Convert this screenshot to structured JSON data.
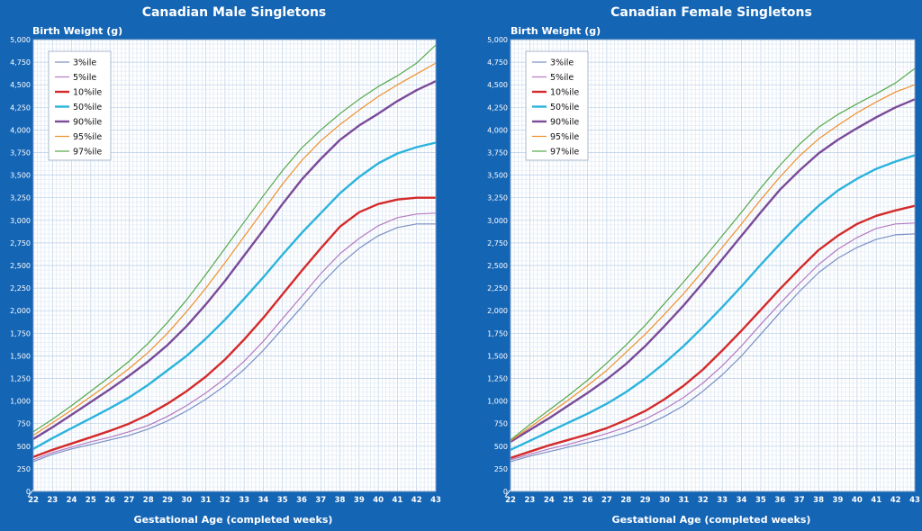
{
  "chart_data": [
    {
      "type": "line",
      "title": "Canadian Male Singletons",
      "ylabel": "Birth Weight (g)",
      "xlabel": "Gestational Age (completed weeks)",
      "x": [
        22,
        23,
        24,
        25,
        26,
        27,
        28,
        29,
        30,
        31,
        32,
        33,
        34,
        35,
        36,
        37,
        38,
        39,
        40,
        41,
        42,
        43
      ],
      "xlim": [
        22,
        43
      ],
      "ylim": [
        0,
        5000
      ],
      "ytick_step": 250,
      "grid": true,
      "legend_position": "top-left",
      "series": [
        {
          "name": "3%ile",
          "color": "#7b8fc4",
          "width": 1.2,
          "values": [
            330,
            410,
            470,
            520,
            570,
            620,
            690,
            780,
            890,
            1020,
            1170,
            1350,
            1560,
            1800,
            2040,
            2290,
            2510,
            2690,
            2830,
            2920,
            2960,
            2960
          ]
        },
        {
          "name": "5%ile",
          "color": "#b57ac0",
          "width": 1.2,
          "values": [
            350,
            430,
            490,
            550,
            600,
            660,
            730,
            830,
            950,
            1090,
            1250,
            1440,
            1660,
            1910,
            2160,
            2410,
            2630,
            2800,
            2940,
            3030,
            3070,
            3080
          ]
        },
        {
          "name": "10%ile",
          "color": "#d42a2a",
          "width": 2.4,
          "values": [
            380,
            460,
            530,
            600,
            670,
            750,
            850,
            970,
            1110,
            1270,
            1460,
            1680,
            1920,
            2180,
            2440,
            2690,
            2930,
            3090,
            3180,
            3230,
            3250,
            3250
          ]
        },
        {
          "name": "50%ile",
          "color": "#2bb3dc",
          "width": 2.4,
          "values": [
            470,
            590,
            700,
            810,
            920,
            1040,
            1180,
            1340,
            1500,
            1690,
            1900,
            2130,
            2370,
            2620,
            2860,
            3080,
            3300,
            3480,
            3630,
            3740,
            3810,
            3860
          ]
        },
        {
          "name": "90%ile",
          "color": "#7a4a98",
          "width": 2.4,
          "values": [
            580,
            710,
            850,
            990,
            1130,
            1280,
            1440,
            1620,
            1830,
            2070,
            2330,
            2610,
            2890,
            3180,
            3450,
            3680,
            3890,
            4050,
            4180,
            4320,
            4440,
            4540
          ]
        },
        {
          "name": "95%ile",
          "color": "#f0902a",
          "width": 1.2,
          "values": [
            620,
            760,
            900,
            1050,
            1200,
            1360,
            1540,
            1750,
            1990,
            2250,
            2530,
            2820,
            3110,
            3400,
            3660,
            3880,
            4060,
            4220,
            4370,
            4500,
            4620,
            4740
          ]
        },
        {
          "name": "97%ile",
          "color": "#55a84a",
          "width": 1.2,
          "values": [
            660,
            800,
            950,
            1110,
            1270,
            1440,
            1640,
            1870,
            2120,
            2400,
            2690,
            2980,
            3270,
            3550,
            3800,
            4000,
            4180,
            4340,
            4480,
            4600,
            4740,
            4940
          ]
        }
      ]
    },
    {
      "type": "line",
      "title": "Canadian Female Singletons",
      "ylabel": "Birth Weight (g)",
      "xlabel": "Gestational Age (completed weeks)",
      "x": [
        22,
        23,
        24,
        25,
        26,
        27,
        28,
        29,
        30,
        31,
        32,
        33,
        34,
        35,
        36,
        37,
        38,
        39,
        40,
        41,
        42,
        43
      ],
      "xlim": [
        22,
        43
      ],
      "ylim": [
        0,
        5000
      ],
      "ytick_step": 250,
      "grid": true,
      "legend_position": "top-left",
      "series": [
        {
          "name": "3%ile",
          "color": "#7b8fc4",
          "width": 1.2,
          "values": [
            330,
            390,
            440,
            490,
            540,
            590,
            650,
            730,
            830,
            950,
            1110,
            1290,
            1500,
            1740,
            1980,
            2210,
            2420,
            2580,
            2700,
            2790,
            2840,
            2850
          ]
        },
        {
          "name": "5%ile",
          "color": "#b57ac0",
          "width": 1.2,
          "values": [
            350,
            410,
            470,
            520,
            580,
            640,
            710,
            800,
            910,
            1040,
            1200,
            1390,
            1610,
            1850,
            2080,
            2300,
            2510,
            2680,
            2810,
            2910,
            2960,
            2970
          ]
        },
        {
          "name": "10%ile",
          "color": "#d42a2a",
          "width": 2.4,
          "values": [
            370,
            440,
            510,
            570,
            630,
            700,
            790,
            890,
            1020,
            1170,
            1350,
            1560,
            1780,
            2010,
            2240,
            2460,
            2670,
            2830,
            2960,
            3050,
            3110,
            3160
          ]
        },
        {
          "name": "50%ile",
          "color": "#2bb3dc",
          "width": 2.4,
          "values": [
            460,
            560,
            660,
            760,
            860,
            970,
            1100,
            1250,
            1420,
            1610,
            1820,
            2040,
            2270,
            2510,
            2740,
            2960,
            3160,
            3330,
            3460,
            3570,
            3650,
            3720
          ]
        },
        {
          "name": "90%ile",
          "color": "#7a4a98",
          "width": 2.4,
          "values": [
            550,
            680,
            810,
            950,
            1090,
            1240,
            1410,
            1610,
            1830,
            2060,
            2310,
            2570,
            2830,
            3090,
            3340,
            3550,
            3740,
            3890,
            4020,
            4140,
            4250,
            4340
          ]
        },
        {
          "name": "95%ile",
          "color": "#f0902a",
          "width": 1.2,
          "values": [
            560,
            710,
            860,
            1010,
            1170,
            1340,
            1540,
            1740,
            1960,
            2190,
            2440,
            2700,
            2960,
            3230,
            3480,
            3710,
            3900,
            4050,
            4190,
            4310,
            4420,
            4500
          ]
        },
        {
          "name": "97%ile",
          "color": "#55a84a",
          "width": 1.2,
          "values": [
            570,
            740,
            900,
            1060,
            1230,
            1420,
            1620,
            1840,
            2080,
            2320,
            2570,
            2830,
            3090,
            3360,
            3610,
            3840,
            4030,
            4170,
            4290,
            4400,
            4520,
            4680
          ]
        }
      ]
    }
  ]
}
